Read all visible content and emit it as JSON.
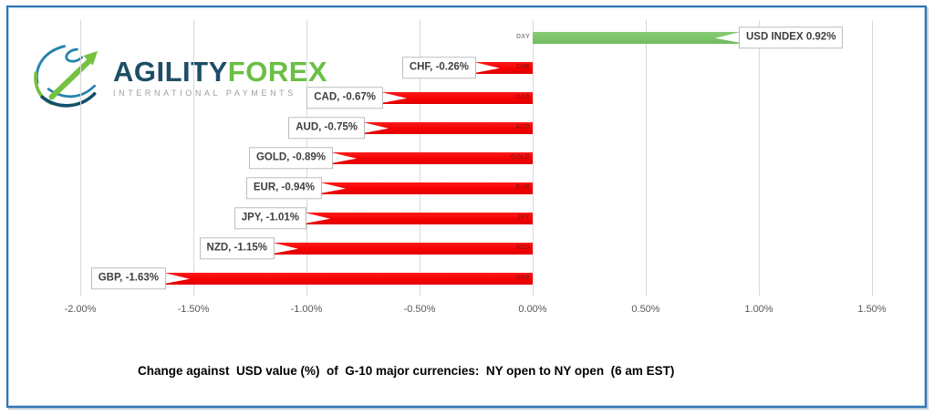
{
  "logo": {
    "brand_part1": "AGILITY",
    "brand_part2": "FOREX",
    "subtitle": "INTERNATIONAL PAYMENTS"
  },
  "frame": {
    "border_color": "#2e75b6"
  },
  "chart_data": {
    "type": "bar",
    "orientation": "horizontal",
    "title": "Change against  USD value (%)  of  G-10 major currencies:  NY open to NY open  (6 am EST)",
    "categories": [
      "DXY",
      "CHF",
      "CAD",
      "AUD",
      "GOLD",
      "EUR",
      "JPY",
      "NZD",
      "GBP"
    ],
    "values": [
      0.92,
      -0.26,
      -0.67,
      -0.75,
      -0.89,
      -0.94,
      -1.01,
      -1.15,
      -1.63
    ],
    "labels": [
      "USD INDEX 0.92%",
      "CHF, -0.26%",
      "CAD, -0.67%",
      "AUD, -0.75%",
      "GOLD, -0.89%",
      "EUR, -0.94%",
      "JPY, -1.01%",
      "NZD, -1.15%",
      "GBP, -1.63%"
    ],
    "xlim": [
      -2.0,
      1.5
    ],
    "x_ticks": [
      "-2.00%",
      "-1.50%",
      "-1.00%",
      "-0.50%",
      "0.00%",
      "0.50%",
      "1.00%",
      "1.50%"
    ],
    "x_tick_values": [
      -2.0,
      -1.5,
      -1.0,
      -0.5,
      0.0,
      0.5,
      1.0,
      1.5
    ],
    "positive_color": "#7cc46a",
    "negative_color": "#f50000",
    "grid": true,
    "legend": false
  }
}
